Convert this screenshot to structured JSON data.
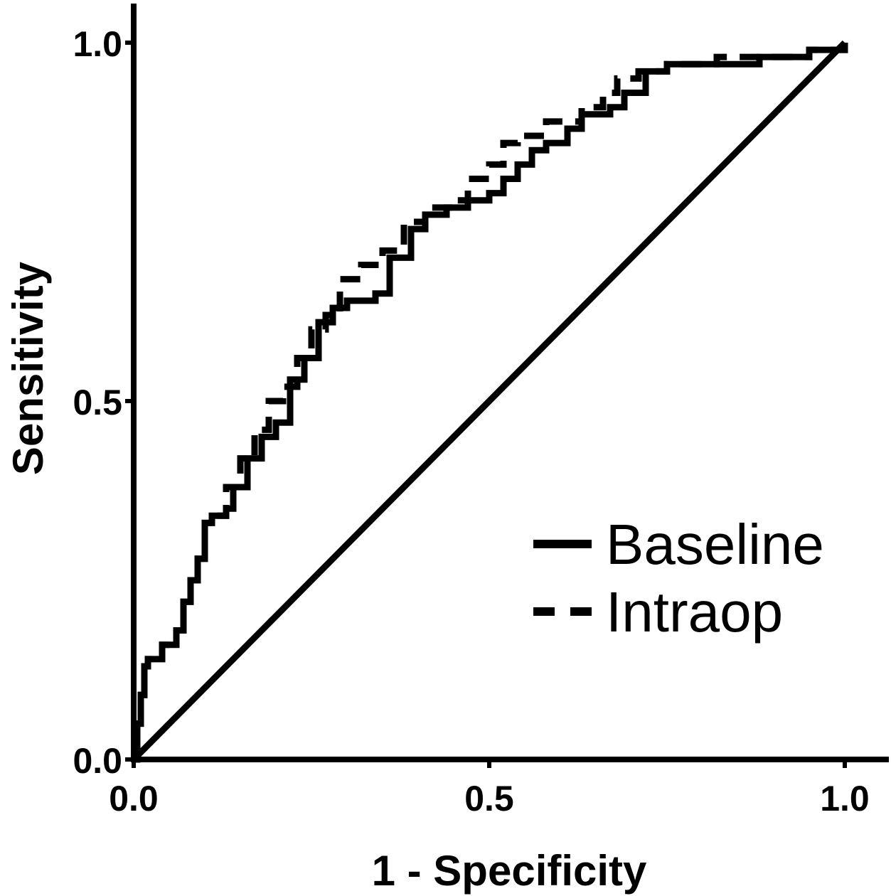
{
  "chart_data": {
    "type": "line",
    "title": "",
    "xlabel": "1 - Specificity",
    "ylabel": "Sensitivity",
    "xlim": [
      0,
      1
    ],
    "ylim": [
      0,
      1
    ],
    "x_ticks": [
      "0.0",
      "0.5",
      "1.0"
    ],
    "y_ticks": [
      "0.0",
      "0.5",
      "1.0"
    ],
    "grid": false,
    "legend_position": "bottom-right",
    "series": [
      {
        "name": "Baseline",
        "style": "solid",
        "color": "#000000",
        "points": [
          [
            0,
            0
          ],
          [
            0.005,
            0.05
          ],
          [
            0.01,
            0.09
          ],
          [
            0.015,
            0.13
          ],
          [
            0.02,
            0.14
          ],
          [
            0.04,
            0.16
          ],
          [
            0.06,
            0.18
          ],
          [
            0.07,
            0.22
          ],
          [
            0.08,
            0.25
          ],
          [
            0.09,
            0.28
          ],
          [
            0.1,
            0.33
          ],
          [
            0.11,
            0.34
          ],
          [
            0.13,
            0.35
          ],
          [
            0.14,
            0.38
          ],
          [
            0.16,
            0.42
          ],
          [
            0.18,
            0.45
          ],
          [
            0.2,
            0.47
          ],
          [
            0.22,
            0.53
          ],
          [
            0.24,
            0.56
          ],
          [
            0.26,
            0.61
          ],
          [
            0.28,
            0.63
          ],
          [
            0.3,
            0.64
          ],
          [
            0.31,
            0.64
          ],
          [
            0.34,
            0.65
          ],
          [
            0.36,
            0.7
          ],
          [
            0.39,
            0.74
          ],
          [
            0.41,
            0.76
          ],
          [
            0.44,
            0.77
          ],
          [
            0.47,
            0.78
          ],
          [
            0.5,
            0.79
          ],
          [
            0.52,
            0.81
          ],
          [
            0.54,
            0.83
          ],
          [
            0.56,
            0.85
          ],
          [
            0.58,
            0.86
          ],
          [
            0.61,
            0.88
          ],
          [
            0.63,
            0.9
          ],
          [
            0.67,
            0.91
          ],
          [
            0.69,
            0.93
          ],
          [
            0.72,
            0.96
          ],
          [
            0.75,
            0.97
          ],
          [
            0.86,
            0.97
          ],
          [
            0.88,
            0.98
          ],
          [
            0.92,
            0.98
          ],
          [
            0.95,
            0.99
          ],
          [
            1,
            1
          ]
        ]
      },
      {
        "name": "Intraop",
        "style": "dashed",
        "color": "#000000",
        "points": [
          [
            0,
            0
          ],
          [
            0.005,
            0.05
          ],
          [
            0.01,
            0.09
          ],
          [
            0.015,
            0.13
          ],
          [
            0.02,
            0.14
          ],
          [
            0.04,
            0.16
          ],
          [
            0.06,
            0.18
          ],
          [
            0.07,
            0.22
          ],
          [
            0.08,
            0.25
          ],
          [
            0.09,
            0.28
          ],
          [
            0.1,
            0.33
          ],
          [
            0.11,
            0.34
          ],
          [
            0.13,
            0.38
          ],
          [
            0.15,
            0.42
          ],
          [
            0.17,
            0.46
          ],
          [
            0.19,
            0.5
          ],
          [
            0.21,
            0.52
          ],
          [
            0.23,
            0.56
          ],
          [
            0.25,
            0.6
          ],
          [
            0.27,
            0.62
          ],
          [
            0.29,
            0.67
          ],
          [
            0.32,
            0.69
          ],
          [
            0.35,
            0.71
          ],
          [
            0.38,
            0.75
          ],
          [
            0.41,
            0.77
          ],
          [
            0.45,
            0.78
          ],
          [
            0.47,
            0.81
          ],
          [
            0.5,
            0.83
          ],
          [
            0.52,
            0.86
          ],
          [
            0.54,
            0.87
          ],
          [
            0.58,
            0.89
          ],
          [
            0.63,
            0.91
          ],
          [
            0.66,
            0.93
          ],
          [
            0.68,
            0.95
          ],
          [
            0.71,
            0.96
          ],
          [
            0.75,
            0.97
          ],
          [
            0.82,
            0.98
          ],
          [
            0.9,
            0.98
          ],
          [
            0.95,
            0.99
          ],
          [
            1,
            1
          ]
        ]
      },
      {
        "name": "",
        "style": "solid",
        "color": "#000000",
        "points": [
          [
            0,
            0
          ],
          [
            1,
            1
          ]
        ]
      }
    ]
  }
}
